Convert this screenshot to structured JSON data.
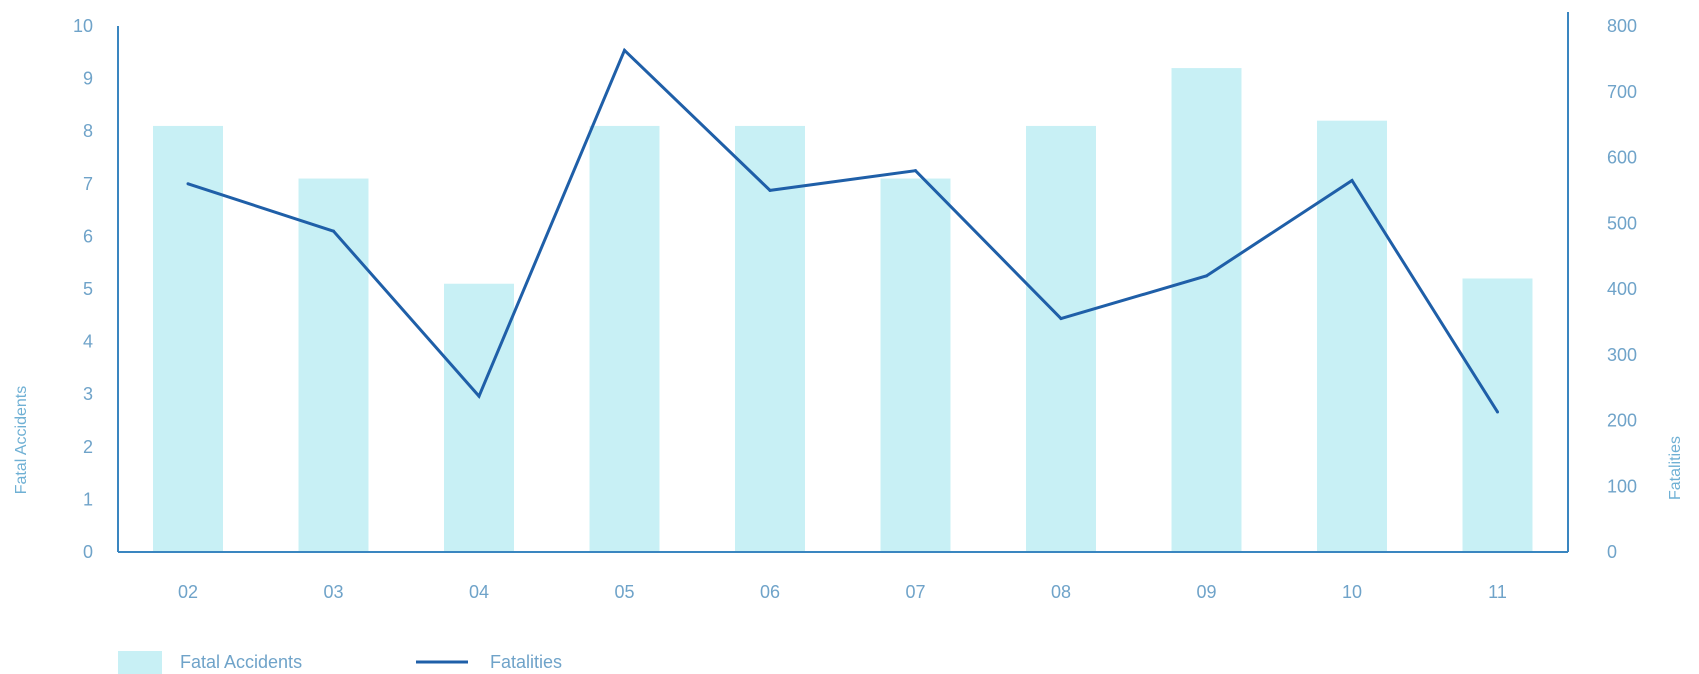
{
  "chart_data": {
    "type": "bar",
    "categories": [
      "02",
      "03",
      "04",
      "05",
      "06",
      "07",
      "08",
      "09",
      "10",
      "11"
    ],
    "series": [
      {
        "name": "Fatal Accidents",
        "type": "bar",
        "axis": "left",
        "values": [
          8.1,
          7.1,
          5.1,
          8.1,
          8.1,
          7.1,
          8.1,
          9.2,
          8.2,
          5.2
        ]
      },
      {
        "name": "Fatalities",
        "type": "line",
        "axis": "right",
        "values": [
          560,
          488,
          237,
          763,
          550,
          580,
          355,
          420,
          565,
          213
        ]
      }
    ],
    "ylabel": "Fatal Accidents",
    "ylabel_right": "Fatalities",
    "ylim": [
      0,
      10
    ],
    "ylim_right": [
      0,
      800
    ],
    "yticks": [
      "0",
      "1",
      "2",
      "3",
      "4",
      "5",
      "6",
      "7",
      "8",
      "9",
      "10"
    ],
    "yticks_right": [
      "0",
      "100",
      "200",
      "300",
      "400",
      "500",
      "600",
      "700",
      "800"
    ],
    "legend": [
      "Fatal Accidents",
      "Fatalities"
    ],
    "legend_position": "bottom-left",
    "grid": false,
    "colors": {
      "bar": "#c8f0f5",
      "line": "#1f5fa8",
      "axis": "#3a86c0",
      "text": "#6fa3c9"
    }
  }
}
